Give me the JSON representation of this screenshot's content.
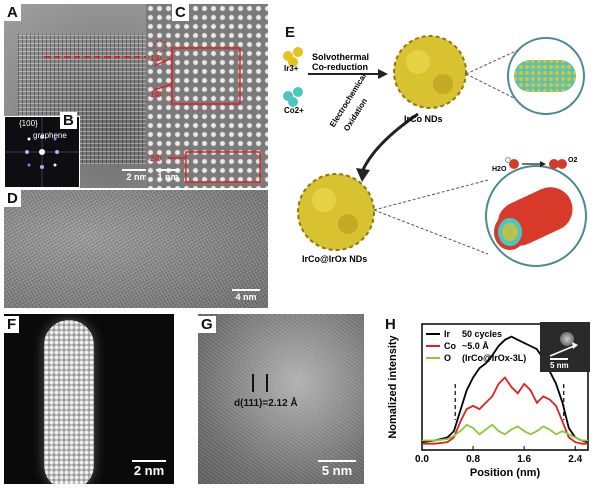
{
  "panels": {
    "A": {
      "label": "A",
      "scale": "2 nm"
    },
    "B": {
      "label": "B",
      "miller": "{100}",
      "graphene": "graphene"
    },
    "C": {
      "label": "C",
      "scale": "1 nm",
      "markers": [
        "1①",
        "1②",
        "2①"
      ]
    },
    "D": {
      "label": "D",
      "scale": "4 nm"
    },
    "E": {
      "label": "E",
      "ir_ion": "Ir3+",
      "co_ion": "Co2+",
      "step1_line1": "Solvothermal",
      "step1_line2": "Co-reduction",
      "step2_line1": "Electrochemical",
      "step2_line2": "Oxidation",
      "product1": "IrCo NDs",
      "product2": "IrCo@IrOx NDs",
      "h2o": "H2O",
      "o2": "O2"
    },
    "F": {
      "label": "F",
      "scale": "2 nm"
    },
    "G": {
      "label": "G",
      "scale": "5 nm",
      "annotation": "d(111)=2.12 Å"
    },
    "H": {
      "label": "H",
      "inset_scale": "5 nm"
    }
  },
  "colors": {
    "ir": "#e8c020",
    "co": "#4ec6c0",
    "oxide": "#d83a2a",
    "ir_line": "#000000",
    "co_line": "#e02020",
    "o_line": "#8cc83a"
  },
  "chart_data": {
    "type": "line",
    "xlabel": "Position (nm)",
    "ylabel": "Nomalized intensity",
    "xlim": [
      0.0,
      2.6
    ],
    "x_ticks": [
      "0.0",
      "0.8",
      "1.6",
      "2.4"
    ],
    "legend_position": "top-left",
    "legend_notes": [
      "50 cycles",
      "~5.0 Å",
      "(IrCo@IrOx-3L)"
    ],
    "dashed_lines_x": [
      0.52,
      2.22
    ],
    "x": [
      0.0,
      0.2,
      0.4,
      0.5,
      0.6,
      0.7,
      0.8,
      0.9,
      1.0,
      1.1,
      1.2,
      1.3,
      1.4,
      1.5,
      1.6,
      1.7,
      1.8,
      1.9,
      2.0,
      2.1,
      2.2,
      2.3,
      2.4,
      2.5,
      2.6
    ],
    "series": [
      {
        "name": "Ir",
        "color": "#000000",
        "values": [
          0.05,
          0.06,
          0.08,
          0.12,
          0.25,
          0.38,
          0.46,
          0.52,
          0.55,
          0.6,
          0.66,
          0.7,
          0.72,
          0.7,
          0.68,
          0.66,
          0.64,
          0.58,
          0.5,
          0.42,
          0.3,
          0.14,
          0.08,
          0.06,
          0.05
        ]
      },
      {
        "name": "Co",
        "color": "#e02020",
        "values": [
          0.04,
          0.04,
          0.05,
          0.08,
          0.18,
          0.26,
          0.28,
          0.26,
          0.3,
          0.34,
          0.42,
          0.46,
          0.4,
          0.36,
          0.42,
          0.38,
          0.3,
          0.34,
          0.32,
          0.28,
          0.18,
          0.08,
          0.05,
          0.04,
          0.04
        ]
      },
      {
        "name": "O",
        "color": "#8cc83a",
        "values": [
          0.06,
          0.06,
          0.07,
          0.09,
          0.12,
          0.16,
          0.14,
          0.1,
          0.13,
          0.16,
          0.12,
          0.1,
          0.13,
          0.15,
          0.12,
          0.1,
          0.12,
          0.15,
          0.13,
          0.1,
          0.12,
          0.1,
          0.08,
          0.06,
          0.06
        ]
      }
    ]
  }
}
